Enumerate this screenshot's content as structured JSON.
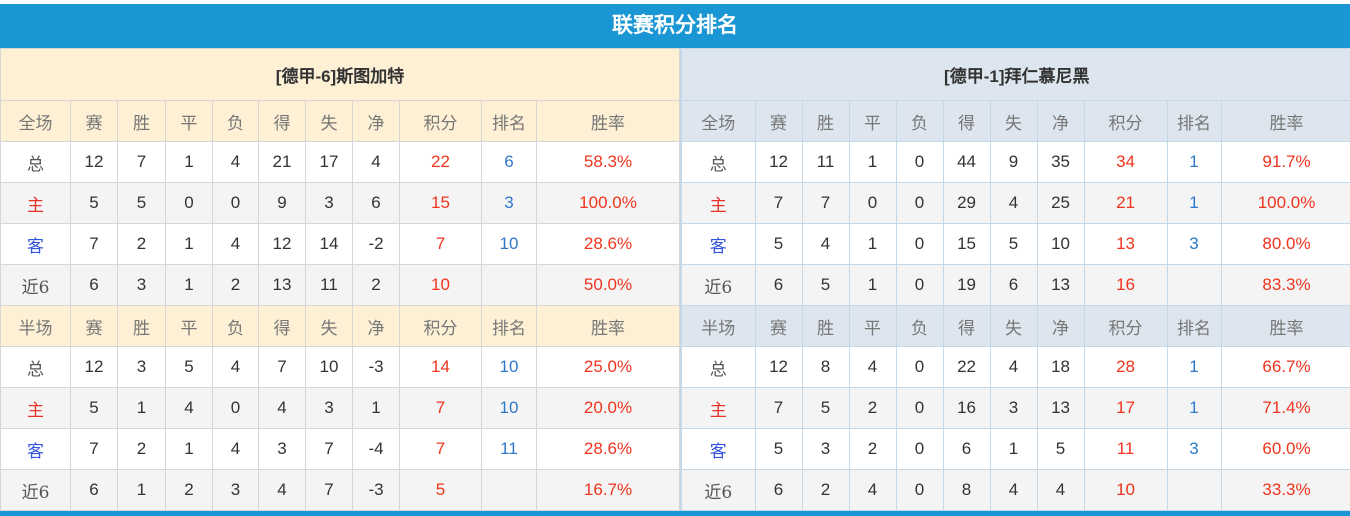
{
  "title": "联赛积分排名",
  "colors": {
    "title_bar": "#1a96d4",
    "left_header": "#fdf0d5",
    "right_header": "#dde6ee",
    "points": "#f0341e",
    "rank": "#2e78c8"
  },
  "columns_tail": [
    "赛",
    "胜",
    "平",
    "负",
    "得",
    "失",
    "净",
    "积分",
    "排名",
    "胜率"
  ],
  "teams": [
    {
      "name": "[德甲-6]斯图加特",
      "sections": [
        {
          "label": "全场",
          "rows": [
            [
              "总",
              "12",
              "7",
              "1",
              "4",
              "21",
              "17",
              "4",
              "22",
              "6",
              "58.3%"
            ],
            [
              "主",
              "5",
              "5",
              "0",
              "0",
              "9",
              "3",
              "6",
              "15",
              "3",
              "100.0%"
            ],
            [
              "客",
              "7",
              "2",
              "1",
              "4",
              "12",
              "14",
              "-2",
              "7",
              "10",
              "28.6%"
            ],
            [
              "近6",
              "6",
              "3",
              "1",
              "2",
              "13",
              "11",
              "2",
              "10",
              "",
              "50.0%"
            ]
          ]
        },
        {
          "label": "半场",
          "rows": [
            [
              "总",
              "12",
              "3",
              "5",
              "4",
              "7",
              "10",
              "-3",
              "14",
              "10",
              "25.0%"
            ],
            [
              "主",
              "5",
              "1",
              "4",
              "0",
              "4",
              "3",
              "1",
              "7",
              "10",
              "20.0%"
            ],
            [
              "客",
              "7",
              "2",
              "1",
              "4",
              "3",
              "7",
              "-4",
              "7",
              "11",
              "28.6%"
            ],
            [
              "近6",
              "6",
              "1",
              "2",
              "3",
              "4",
              "7",
              "-3",
              "5",
              "",
              "16.7%"
            ]
          ]
        }
      ]
    },
    {
      "name": "[德甲-1]拜仁慕尼黑",
      "sections": [
        {
          "label": "全场",
          "rows": [
            [
              "总",
              "12",
              "11",
              "1",
              "0",
              "44",
              "9",
              "35",
              "34",
              "1",
              "91.7%"
            ],
            [
              "主",
              "7",
              "7",
              "0",
              "0",
              "29",
              "4",
              "25",
              "21",
              "1",
              "100.0%"
            ],
            [
              "客",
              "5",
              "4",
              "1",
              "0",
              "15",
              "5",
              "10",
              "13",
              "3",
              "80.0%"
            ],
            [
              "近6",
              "6",
              "5",
              "1",
              "0",
              "19",
              "6",
              "13",
              "16",
              "",
              "83.3%"
            ]
          ]
        },
        {
          "label": "半场",
          "rows": [
            [
              "总",
              "12",
              "8",
              "4",
              "0",
              "22",
              "4",
              "18",
              "28",
              "1",
              "66.7%"
            ],
            [
              "主",
              "7",
              "5",
              "2",
              "0",
              "16",
              "3",
              "13",
              "17",
              "1",
              "71.4%"
            ],
            [
              "客",
              "5",
              "3",
              "2",
              "0",
              "6",
              "1",
              "5",
              "11",
              "3",
              "60.0%"
            ],
            [
              "近6",
              "6",
              "2",
              "4",
              "0",
              "8",
              "4",
              "4",
              "10",
              "",
              "33.3%"
            ]
          ]
        }
      ]
    }
  ]
}
